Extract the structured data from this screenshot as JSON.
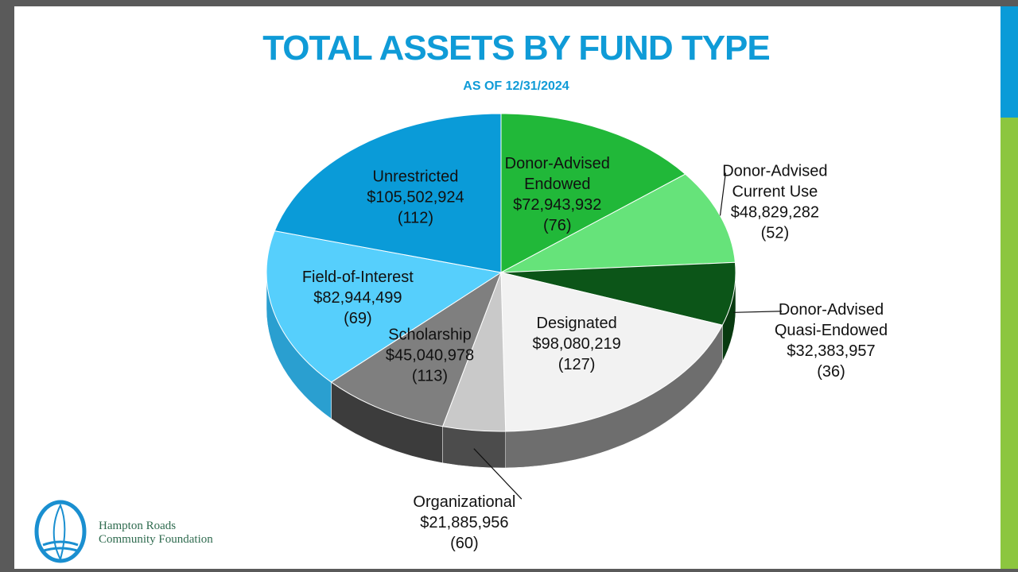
{
  "title": "TOTAL ASSETS BY FUND TYPE",
  "subtitle": "AS OF 12/31/2024",
  "logo": {
    "line1": "Hampton Roads",
    "line2": "Community Foundation"
  },
  "chart_data": {
    "type": "pie",
    "title": "TOTAL ASSETS BY FUND TYPE",
    "subtitle": "AS OF 12/31/2024",
    "slices": [
      {
        "label": [
          "Donor-Advised",
          "Endowed"
        ],
        "value": 72943932,
        "display": "$72,943,932",
        "count": "(76)",
        "color": "#21b839",
        "side": "#168a27"
      },
      {
        "label": [
          "Donor-Advised",
          "Current Use"
        ],
        "value": 48829282,
        "display": "$48,829,282",
        "count": "(52)",
        "color": "#66e37a",
        "side": "#3fae53"
      },
      {
        "label": [
          "Donor-Advised",
          "Quasi-Endowed"
        ],
        "value": 32383957,
        "display": "$32,383,957",
        "count": "(36)",
        "color": "#0c5518",
        "side": "#083a10"
      },
      {
        "label": [
          "Designated"
        ],
        "value": 98080219,
        "display": "$98,080,219",
        "count": "(127)",
        "color": "#f2f2f2",
        "side": "#6e6e6e"
      },
      {
        "label": [
          "Organizational"
        ],
        "value": 21885956,
        "display": "$21,885,956",
        "count": "(60)",
        "color": "#c9c9c9",
        "side": "#4c4c4c"
      },
      {
        "label": [
          "Scholarship"
        ],
        "value": 45040978,
        "display": "$45,040,978",
        "count": "(113)",
        "color": "#7f7f7f",
        "side": "#3c3c3c"
      },
      {
        "label": [
          "Field-of-Interest"
        ],
        "value": 82944499,
        "display": "$82,944,499",
        "count": "(69)",
        "color": "#56cffc",
        "side": "#2a9fd0"
      },
      {
        "label": [
          "Unrestricted"
        ],
        "value": 105502924,
        "display": "$105,502,924",
        "count": "(112)",
        "color": "#0a9bd8",
        "side": "#066c99"
      }
    ]
  }
}
